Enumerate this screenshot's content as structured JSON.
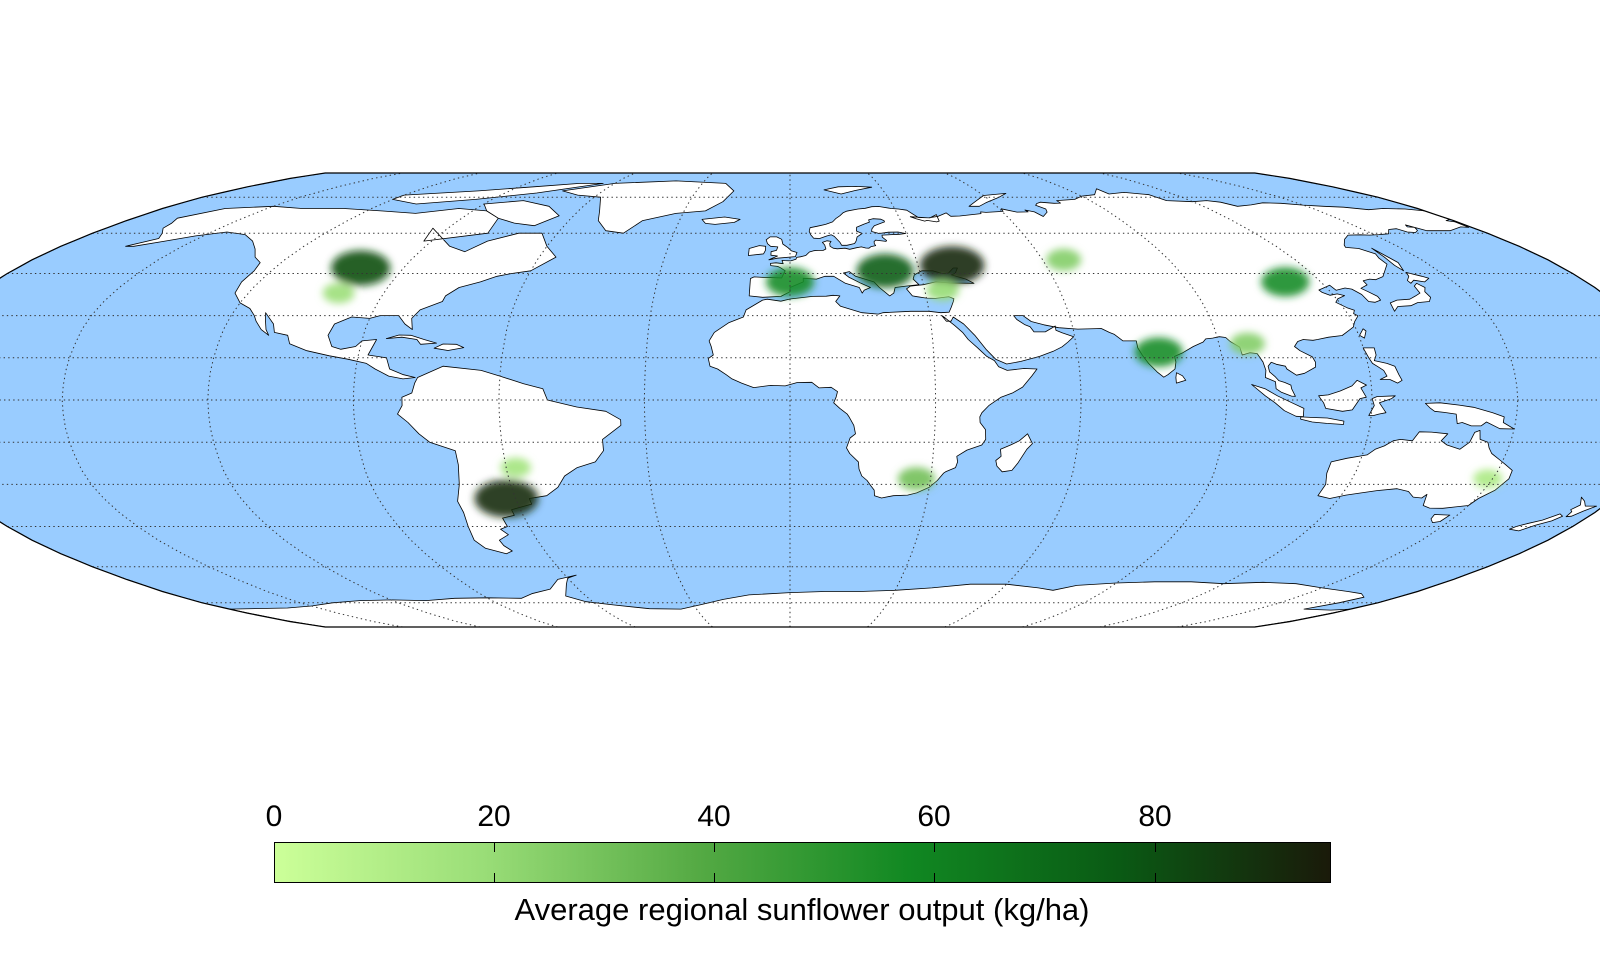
{
  "colors": {
    "ocean": "#99ccff",
    "land": "#ffffff",
    "coast": "#000000",
    "graticule": "#333333",
    "colormap": [
      "#ccff99",
      "#99dd77",
      "#55aa44",
      "#118822",
      "#0a5a14",
      "#1a1a0a"
    ]
  },
  "colorbar": {
    "ticks": [
      "0",
      "20",
      "40",
      "60",
      "80"
    ],
    "tick_values": [
      0,
      20,
      40,
      60,
      80
    ],
    "min": 0,
    "max": 96,
    "title": "Average regional sunflower output (kg/ha)"
  },
  "map": {
    "projection": "Robinson",
    "graticule": "dotted",
    "meridian_step_deg": 30,
    "parallel_step_deg": 15
  },
  "production_regions": [
    {
      "id": "north-america-plains",
      "lon": -100,
      "lat": 47,
      "value": 80
    },
    {
      "id": "north-america-south",
      "lon": -100,
      "lat": 38,
      "value": 18
    },
    {
      "id": "spain-france",
      "lon": 0,
      "lat": 42,
      "value": 55
    },
    {
      "id": "eastern-europe",
      "lon": 22,
      "lat": 46,
      "value": 75
    },
    {
      "id": "ukraine-russia",
      "lon": 38,
      "lat": 48,
      "value": 92
    },
    {
      "id": "turkey",
      "lon": 34,
      "lat": 39,
      "value": 20
    },
    {
      "id": "kazakhstan",
      "lon": 65,
      "lat": 50,
      "value": 25
    },
    {
      "id": "india",
      "lon": 77,
      "lat": 17,
      "value": 55
    },
    {
      "id": "myanmar",
      "lon": 96,
      "lat": 20,
      "value": 25
    },
    {
      "id": "china-north",
      "lon": 112,
      "lat": 42,
      "value": 55
    },
    {
      "id": "argentina",
      "lon": -62,
      "lat": -35,
      "value": 90
    },
    {
      "id": "paraguay-brazil",
      "lon": -58,
      "lat": -24,
      "value": 15
    },
    {
      "id": "south-africa",
      "lon": 27,
      "lat": -28,
      "value": 30
    },
    {
      "id": "australia-east",
      "lon": 149,
      "lat": -28,
      "value": 12
    }
  ]
}
